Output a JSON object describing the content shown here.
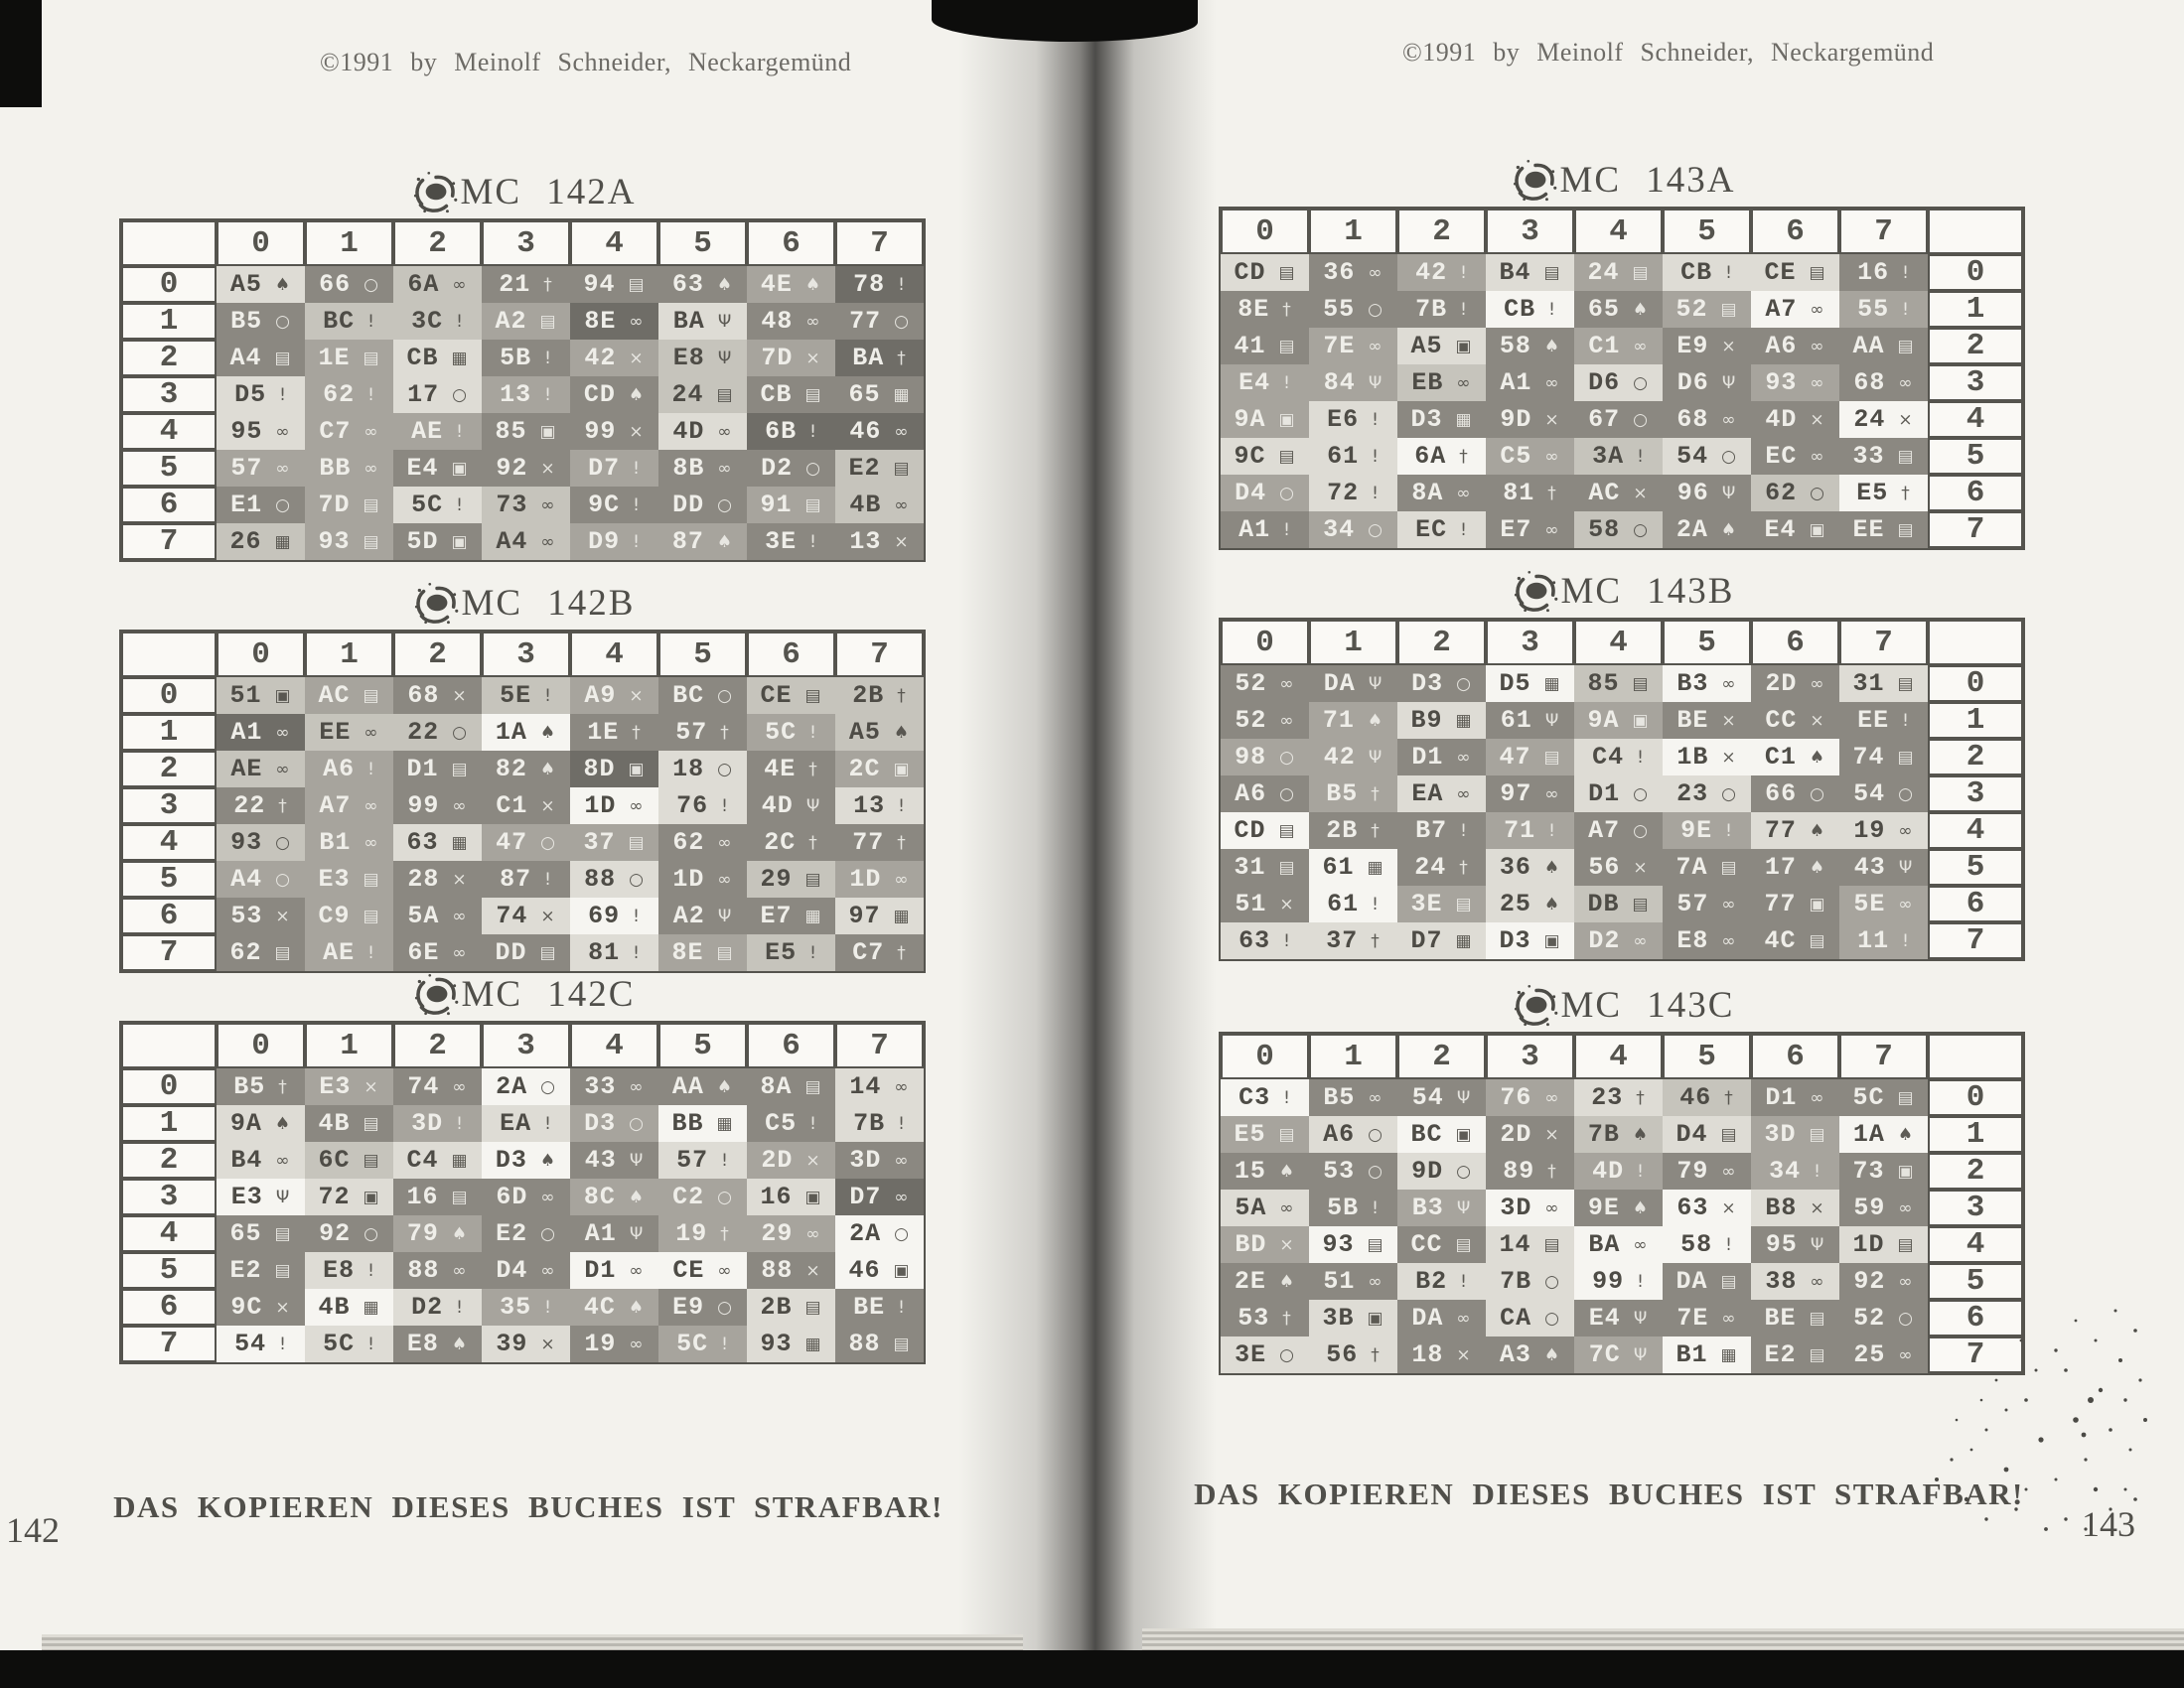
{
  "palette": {
    "paper": "#f3f2ed",
    "ink": "#504f4a",
    "ink_light": "#6d6b66",
    "border": "#55544e",
    "cell_text_dark": "#4e4c46",
    "cell_text_light": "#efeee9",
    "shades": [
      "#f6f5f1",
      "#dedcd5",
      "#c6c4bc",
      "#a7a49d",
      "#8b8881",
      "#6f6d67"
    ]
  },
  "icons": {
    "ring": "○",
    "balls": "∞",
    "cross": "×",
    "case": "▤",
    "basket": "▦",
    "person": "Ψ",
    "dagger": "†",
    "acorn": "♠",
    "box": "▣",
    "drop": "!"
  },
  "column_headers": [
    "0",
    "1",
    "2",
    "3",
    "4",
    "5",
    "6",
    "7"
  ],
  "row_headers": [
    "0",
    "1",
    "2",
    "3",
    "4",
    "5",
    "6",
    "7"
  ],
  "left_page": {
    "copyright": "©1991 by Meinolf Schneider, Neckargemünd",
    "footer": "DAS KOPIEREN DIESES BUCHES IST STRAFBAR!",
    "page_number": "142",
    "tables": [
      {
        "title": "MC 142A",
        "rows": [
          [
            "A5|acorn|1",
            "66|ring|4",
            "6A|balls|2",
            "21|dagger|4",
            "94|case|4",
            "63|acorn|4",
            "4E|acorn|3",
            "78|drop|5"
          ],
          [
            "B5|ring|4",
            "BC|drop|2",
            "3C|drop|2",
            "A2|case|3",
            "8E|balls|5",
            "BA|person|1",
            "48|balls|4",
            "77|ring|4"
          ],
          [
            "A4|case|4",
            "1E|case|3",
            "CB|basket|1",
            "5B|drop|4",
            "42|cross|3",
            "E8|person|2",
            "7D|cross|3",
            "BA|dagger|5"
          ],
          [
            "D5|drop|1",
            "62|drop|3",
            "17|ring|1",
            "13|drop|3",
            "CD|acorn|4",
            "24|case|2",
            "CB|case|4",
            "65|basket|4"
          ],
          [
            "95|balls|1",
            "C7|balls|3",
            "AE|drop|3",
            "85|box|4",
            "99|cross|4",
            "4D|balls|1",
            "6B|drop|5",
            "46|balls|5"
          ],
          [
            "57|balls|3",
            "BB|balls|3",
            "E4|box|4",
            "92|cross|4",
            "D7|drop|3",
            "8B|balls|4",
            "D2|ring|4",
            "E2|case|2"
          ],
          [
            "E1|ring|4",
            "7D|case|3",
            "5C|drop|1",
            "73|balls|2",
            "9C|drop|4",
            "DD|ring|4",
            "91|case|3",
            "4B|balls|2"
          ],
          [
            "26|basket|2",
            "93|case|3",
            "5D|box|4",
            "A4|balls|2",
            "D9|drop|3",
            "87|acorn|3",
            "3E|drop|4",
            "13|cross|4"
          ]
        ]
      },
      {
        "title": "MC 142B",
        "rows": [
          [
            "51|box|2",
            "AC|case|3",
            "68|cross|4",
            "5E|drop|2",
            "A9|cross|3",
            "BC|ring|4",
            "CE|case|2",
            "2B|dagger|2"
          ],
          [
            "A1|balls|5",
            "EE|balls|2",
            "22|ring|2",
            "1A|acorn|0",
            "1E|dagger|4",
            "57|dagger|4",
            "5C|drop|3",
            "A5|acorn|2"
          ],
          [
            "AE|balls|2",
            "A6|drop|3",
            "D1|case|4",
            "82|acorn|4",
            "8D|box|5",
            "18|ring|1",
            "4E|dagger|4",
            "2C|box|3"
          ],
          [
            "22|dagger|4",
            "A7|balls|3",
            "99|balls|4",
            "C1|cross|4",
            "1D|balls|0",
            "76|drop|1",
            "4D|person|4",
            "13|drop|1"
          ],
          [
            "93|ring|2",
            "B1|balls|3",
            "63|basket|1",
            "47|ring|3",
            "37|case|3",
            "62|balls|4",
            "2C|dagger|4",
            "77|dagger|4"
          ],
          [
            "A4|ring|3",
            "E3|case|3",
            "28|cross|4",
            "87|drop|4",
            "88|ring|1",
            "1D|balls|4",
            "29|case|2",
            "1D|balls|3"
          ],
          [
            "53|cross|4",
            "C9|case|3",
            "5A|balls|4",
            "74|cross|1",
            "69|drop|0",
            "A2|person|4",
            "E7|basket|4",
            "97|basket|1"
          ],
          [
            "62|case|4",
            "AE|drop|3",
            "6E|balls|4",
            "DD|case|4",
            "81|drop|1",
            "8E|case|3",
            "E5|drop|2",
            "C7|dagger|4"
          ]
        ]
      },
      {
        "title": "MC 142C",
        "rows": [
          [
            "B5|dagger|4",
            "E3|cross|3",
            "74|balls|4",
            "2A|ring|0",
            "33|balls|4",
            "AA|acorn|4",
            "8A|case|4",
            "14|balls|1"
          ],
          [
            "9A|acorn|1",
            "4B|case|4",
            "3D|drop|3",
            "EA|drop|1",
            "D3|ring|3",
            "BB|basket|0",
            "C5|drop|4",
            "7B|drop|1"
          ],
          [
            "B4|balls|1",
            "6C|case|2",
            "C4|basket|1",
            "D3|acorn|0",
            "43|person|4",
            "57|drop|1",
            "2D|cross|3",
            "3D|balls|4"
          ],
          [
            "E3|person|0",
            "72|box|1",
            "16|case|4",
            "6D|balls|4",
            "8C|acorn|3",
            "C2|ring|3",
            "16|box|1",
            "D7|balls|5"
          ],
          [
            "65|case|4",
            "92|ring|4",
            "79|acorn|3",
            "E2|ring|4",
            "A1|person|4",
            "19|dagger|3",
            "29|balls|3",
            "2A|ring|0"
          ],
          [
            "E2|case|4",
            "E8|drop|1",
            "88|balls|4",
            "D4|balls|4",
            "D1|balls|0",
            "CE|balls|0",
            "88|cross|4",
            "46|box|0"
          ],
          [
            "9C|cross|4",
            "4B|basket|0",
            "D2|drop|1",
            "35|drop|3",
            "4C|acorn|3",
            "E9|ring|4",
            "2B|case|1",
            "BE|drop|4"
          ],
          [
            "54|drop|0",
            "5C|drop|1",
            "E8|acorn|4",
            "39|cross|1",
            "19|balls|4",
            "5C|drop|3",
            "93|basket|1",
            "88|case|4"
          ]
        ]
      }
    ]
  },
  "right_page": {
    "copyright": "©1991 by Meinolf Schneider, Neckargemünd",
    "footer": "DAS KOPIEREN DIESES BUCHES IST STRAFBAR!",
    "page_number": "143",
    "tables": [
      {
        "title": "MC 143A",
        "rows": [
          [
            "CD|case|1",
            "36|balls|4",
            "42|drop|3",
            "B4|case|1",
            "24|case|3",
            "CB|drop|1",
            "CE|case|1",
            "16|drop|4"
          ],
          [
            "8E|dagger|4",
            "55|ring|4",
            "7B|drop|4",
            "CB|drop|0",
            "65|acorn|4",
            "52|case|3",
            "A7|balls|0",
            "55|drop|3"
          ],
          [
            "41|case|4",
            "7E|balls|3",
            "A5|box|1",
            "58|acorn|4",
            "C1|balls|3",
            "E9|cross|4",
            "A6|balls|4",
            "AA|case|4"
          ],
          [
            "E4|drop|3",
            "84|person|3",
            "EB|balls|2",
            "A1|balls|4",
            "D6|ring|1",
            "D6|person|4",
            "93|balls|3",
            "68|balls|4"
          ],
          [
            "9A|box|3",
            "E6|drop|1",
            "D3|basket|4",
            "9D|cross|4",
            "67|ring|4",
            "68|balls|4",
            "4D|cross|4",
            "24|cross|0"
          ],
          [
            "9C|case|1",
            "61|drop|1",
            "6A|dagger|0",
            "C5|balls|3",
            "3A|drop|2",
            "54|ring|1",
            "EC|balls|4",
            "33|case|4"
          ],
          [
            "D4|ring|3",
            "72|drop|1",
            "8A|balls|4",
            "81|dagger|4",
            "AC|cross|4",
            "96|person|4",
            "62|ring|2",
            "E5|dagger|0"
          ],
          [
            "A1|drop|4",
            "34|ring|3",
            "EC|drop|1",
            "E7|balls|4",
            "58|ring|2",
            "2A|acorn|4",
            "E4|box|4",
            "EE|case|4"
          ]
        ]
      },
      {
        "title": "MC 143B",
        "rows": [
          [
            "52|balls|4",
            "DA|person|4",
            "D3|ring|4",
            "D5|basket|0",
            "85|case|2",
            "B3|balls|0",
            "2D|balls|4",
            "31|case|1"
          ],
          [
            "52|balls|4",
            "71|acorn|3",
            "B9|basket|1",
            "61|person|4",
            "9A|box|3",
            "BE|cross|4",
            "CC|cross|4",
            "EE|drop|4"
          ],
          [
            "98|ring|3",
            "42|person|3",
            "D1|balls|4",
            "47|case|3",
            "C4|drop|1",
            "1B|cross|0",
            "C1|acorn|0",
            "74|case|4"
          ],
          [
            "A6|ring|4",
            "B5|dagger|3",
            "EA|balls|1",
            "97|balls|4",
            "D1|ring|1",
            "23|ring|1",
            "66|ring|4",
            "54|ring|4"
          ],
          [
            "CD|case|0",
            "2B|dagger|4",
            "B7|drop|4",
            "71|drop|3",
            "A7|ring|4",
            "9E|drop|3",
            "77|acorn|1",
            "19|balls|1"
          ],
          [
            "31|case|4",
            "61|basket|0",
            "24|dagger|4",
            "36|acorn|1",
            "56|cross|4",
            "7A|case|4",
            "17|acorn|4",
            "43|person|4"
          ],
          [
            "51|cross|4",
            "61|drop|0",
            "3E|case|3",
            "25|acorn|1",
            "DB|case|2",
            "57|balls|4",
            "77|box|4",
            "5E|balls|3"
          ],
          [
            "63|drop|1",
            "37|dagger|1",
            "D7|basket|1",
            "D3|box|0",
            "D2|balls|3",
            "E8|balls|4",
            "4C|case|4",
            "11|drop|3"
          ]
        ]
      },
      {
        "title": "MC 143C",
        "rows": [
          [
            "C3|drop|0",
            "B5|balls|4",
            "54|person|4",
            "76|balls|3",
            "23|dagger|1",
            "46|dagger|2",
            "D1|balls|4",
            "5C|case|4"
          ],
          [
            "E5|case|3",
            "A6|ring|1",
            "BC|box|0",
            "2D|cross|4",
            "7B|acorn|2",
            "D4|case|1",
            "3D|case|3",
            "1A|acorn|0"
          ],
          [
            "15|acorn|4",
            "53|ring|4",
            "9D|ring|1",
            "89|dagger|4",
            "4D|drop|3",
            "79|balls|4",
            "34|drop|3",
            "73|box|4"
          ],
          [
            "5A|balls|1",
            "5B|drop|4",
            "B3|person|3",
            "3D|balls|0",
            "9E|acorn|4",
            "63|cross|0",
            "B8|cross|1",
            "59|balls|4"
          ],
          [
            "BD|cross|3",
            "93|case|0",
            "CC|case|4",
            "14|case|1",
            "BA|balls|0",
            "58|drop|0",
            "95|person|4",
            "1D|case|1"
          ],
          [
            "2E|acorn|4",
            "51|balls|4",
            "B2|drop|1",
            "7B|ring|1",
            "99|drop|0",
            "DA|case|4",
            "38|balls|1",
            "92|balls|4"
          ],
          [
            "53|dagger|4",
            "3B|box|1",
            "DA|balls|4",
            "CA|ring|1",
            "E4|person|4",
            "7E|balls|4",
            "BE|case|4",
            "52|ring|4"
          ],
          [
            "3E|ring|1",
            "56|dagger|1",
            "18|cross|4",
            "A3|acorn|4",
            "7C|person|3",
            "B1|basket|0",
            "E2|case|4",
            "25|balls|4"
          ]
        ]
      }
    ]
  }
}
